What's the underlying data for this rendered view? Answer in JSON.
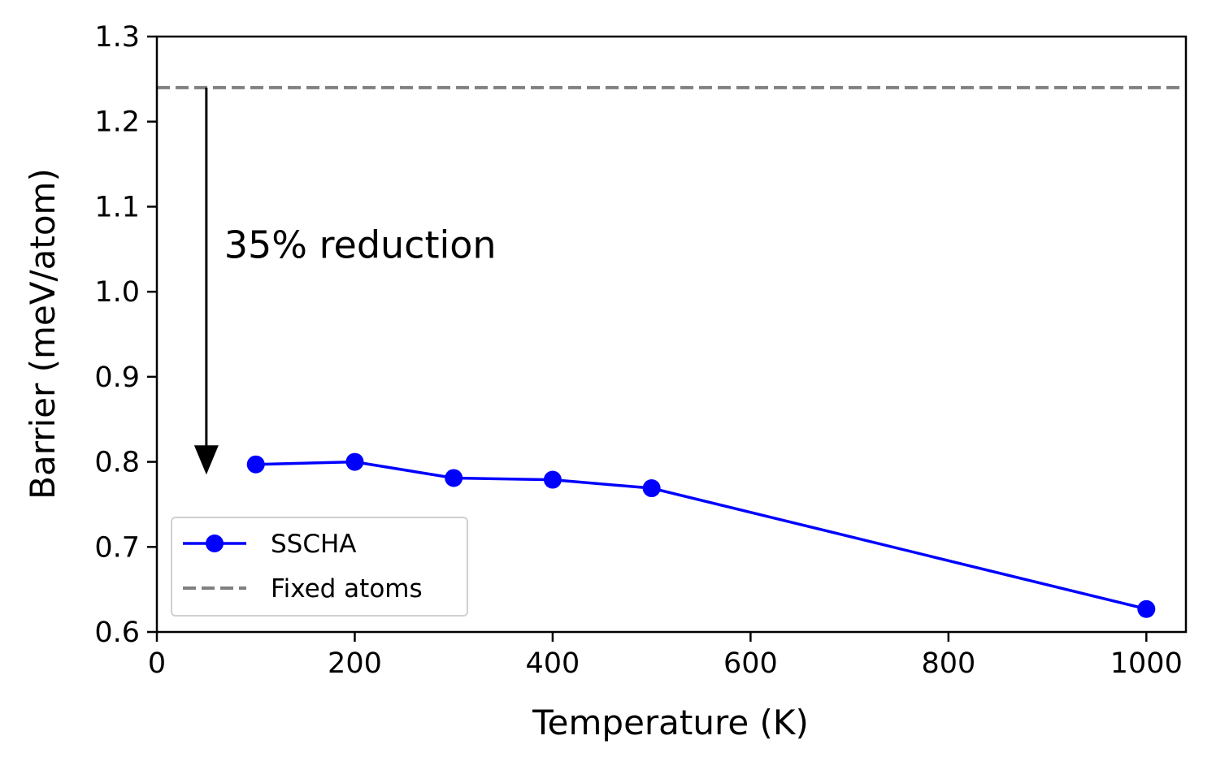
{
  "chart_data": {
    "type": "line",
    "title": "",
    "xlabel": "Temperature (K)",
    "ylabel": "Barrier (meV/atom)",
    "xlim": [
      0,
      1040
    ],
    "ylim": [
      0.6,
      1.3
    ],
    "xticks": [
      0,
      200,
      400,
      600,
      800,
      1000
    ],
    "xtick_labels": [
      "0",
      "200",
      "400",
      "600",
      "800",
      "1000"
    ],
    "yticks": [
      0.6,
      0.7,
      0.8,
      0.9,
      1.0,
      1.1,
      1.2,
      1.3
    ],
    "ytick_labels": [
      "0.6",
      "0.7",
      "0.8",
      "0.9",
      "1.0",
      "1.1",
      "1.2",
      "1.3"
    ],
    "grid": false,
    "series": [
      {
        "name": "SSCHA",
        "style": "solid line with circle markers",
        "color": "#0000ff",
        "x": [
          100,
          200,
          300,
          400,
          500,
          1000
        ],
        "values": [
          0.797,
          0.8,
          0.781,
          0.779,
          0.769,
          0.627
        ]
      }
    ],
    "reference_lines": [
      {
        "name": "Fixed atoms",
        "style": "dashed horizontal line",
        "color": "#808080",
        "y": 1.24
      }
    ],
    "annotations": [
      {
        "text": "35% reduction",
        "arrow_x": 50,
        "arrow_from_y": 1.24,
        "arrow_to_y": 0.785,
        "text_x": 68,
        "text_y": 1.04
      }
    ],
    "legend": {
      "position": "bottom-left",
      "entries": [
        "SSCHA",
        "Fixed atoms"
      ]
    }
  }
}
